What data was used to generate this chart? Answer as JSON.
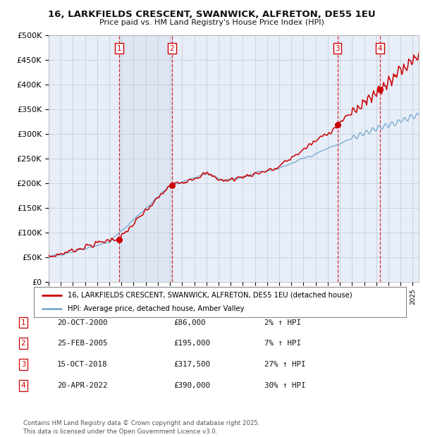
{
  "title": "16, LARKFIELDS CRESCENT, SWANWICK, ALFRETON, DE55 1EU",
  "subtitle": "Price paid vs. HM Land Registry's House Price Index (HPI)",
  "xlim_start": 1995.0,
  "xlim_end": 2025.5,
  "ylim": [
    0,
    500000
  ],
  "yticks": [
    0,
    50000,
    100000,
    150000,
    200000,
    250000,
    300000,
    350000,
    400000,
    450000,
    500000
  ],
  "ytick_labels": [
    "£0",
    "£50K",
    "£100K",
    "£150K",
    "£200K",
    "£250K",
    "£300K",
    "£350K",
    "£400K",
    "£450K",
    "£500K"
  ],
  "sale_dates": [
    2000.8,
    2005.15,
    2018.79,
    2022.3
  ],
  "sale_prices": [
    86000,
    195000,
    317500,
    390000
  ],
  "sale_labels": [
    "1",
    "2",
    "3",
    "4"
  ],
  "sale_color": "#cc0000",
  "hpi_color": "#7aabcf",
  "background_color": "#ffffff",
  "plot_bg_color": "#e8eef8",
  "grid_color": "#c0c8d8",
  "legend_entries": [
    "16, LARKFIELDS CRESCENT, SWANWICK, ALFRETON, DE55 1EU (detached house)",
    "HPI: Average price, detached house, Amber Valley"
  ],
  "table_data": [
    [
      "1",
      "20-OCT-2000",
      "£86,000",
      "2% ↑ HPI"
    ],
    [
      "2",
      "25-FEB-2005",
      "£195,000",
      "7% ↑ HPI"
    ],
    [
      "3",
      "15-OCT-2018",
      "£317,500",
      "27% ↑ HPI"
    ],
    [
      "4",
      "20-APR-2022",
      "£390,000",
      "30% ↑ HPI"
    ]
  ],
  "footer": "Contains HM Land Registry data © Crown copyright and database right 2025.\nThis data is licensed under the Open Government Licence v3.0."
}
